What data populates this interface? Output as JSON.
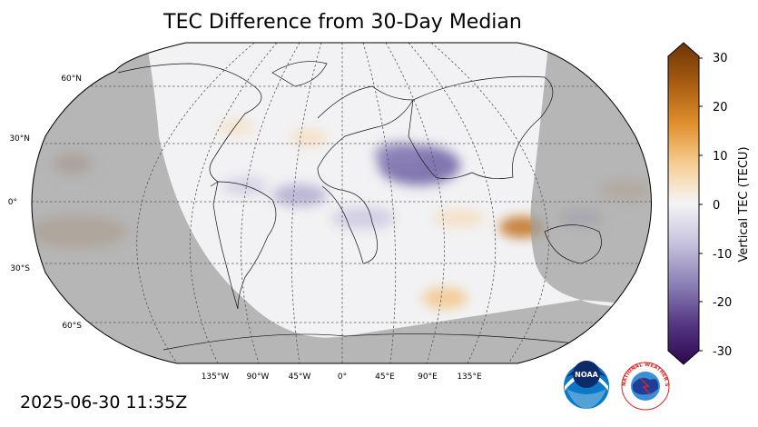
{
  "title": "TEC Difference from 30-Day Median",
  "timestamp": "2025-06-30 11:35Z",
  "colorbar": {
    "label": "Vertical TEC (TECU)",
    "min": -30,
    "max": 30,
    "ticks": [
      "30",
      "20",
      "10",
      "0",
      "-10",
      "-20",
      "-30"
    ],
    "colors": [
      "#3a0f5c",
      "#5c3d86",
      "#8a7bb3",
      "#c6c2dd",
      "#f3f3f5",
      "#f9dcb0",
      "#e9a24e",
      "#b86512",
      "#7a3a05"
    ]
  },
  "latitude_labels": [
    "60°N",
    "30°N",
    "0°",
    "30°S",
    "60°S"
  ],
  "longitude_labels": [
    "135°W",
    "90°W",
    "45°W",
    "0°",
    "45°E",
    "90°E",
    "135°E"
  ],
  "logos": {
    "noaa": "NOAA",
    "nws": "NATIONAL WEATHER SERVICE"
  },
  "colors": {
    "night_shade": "#b3b3b3",
    "day_background": "#f2f2f4",
    "enhancement": "#e2ad6b",
    "depletion": "#8b82b8",
    "grid": "#555555"
  }
}
